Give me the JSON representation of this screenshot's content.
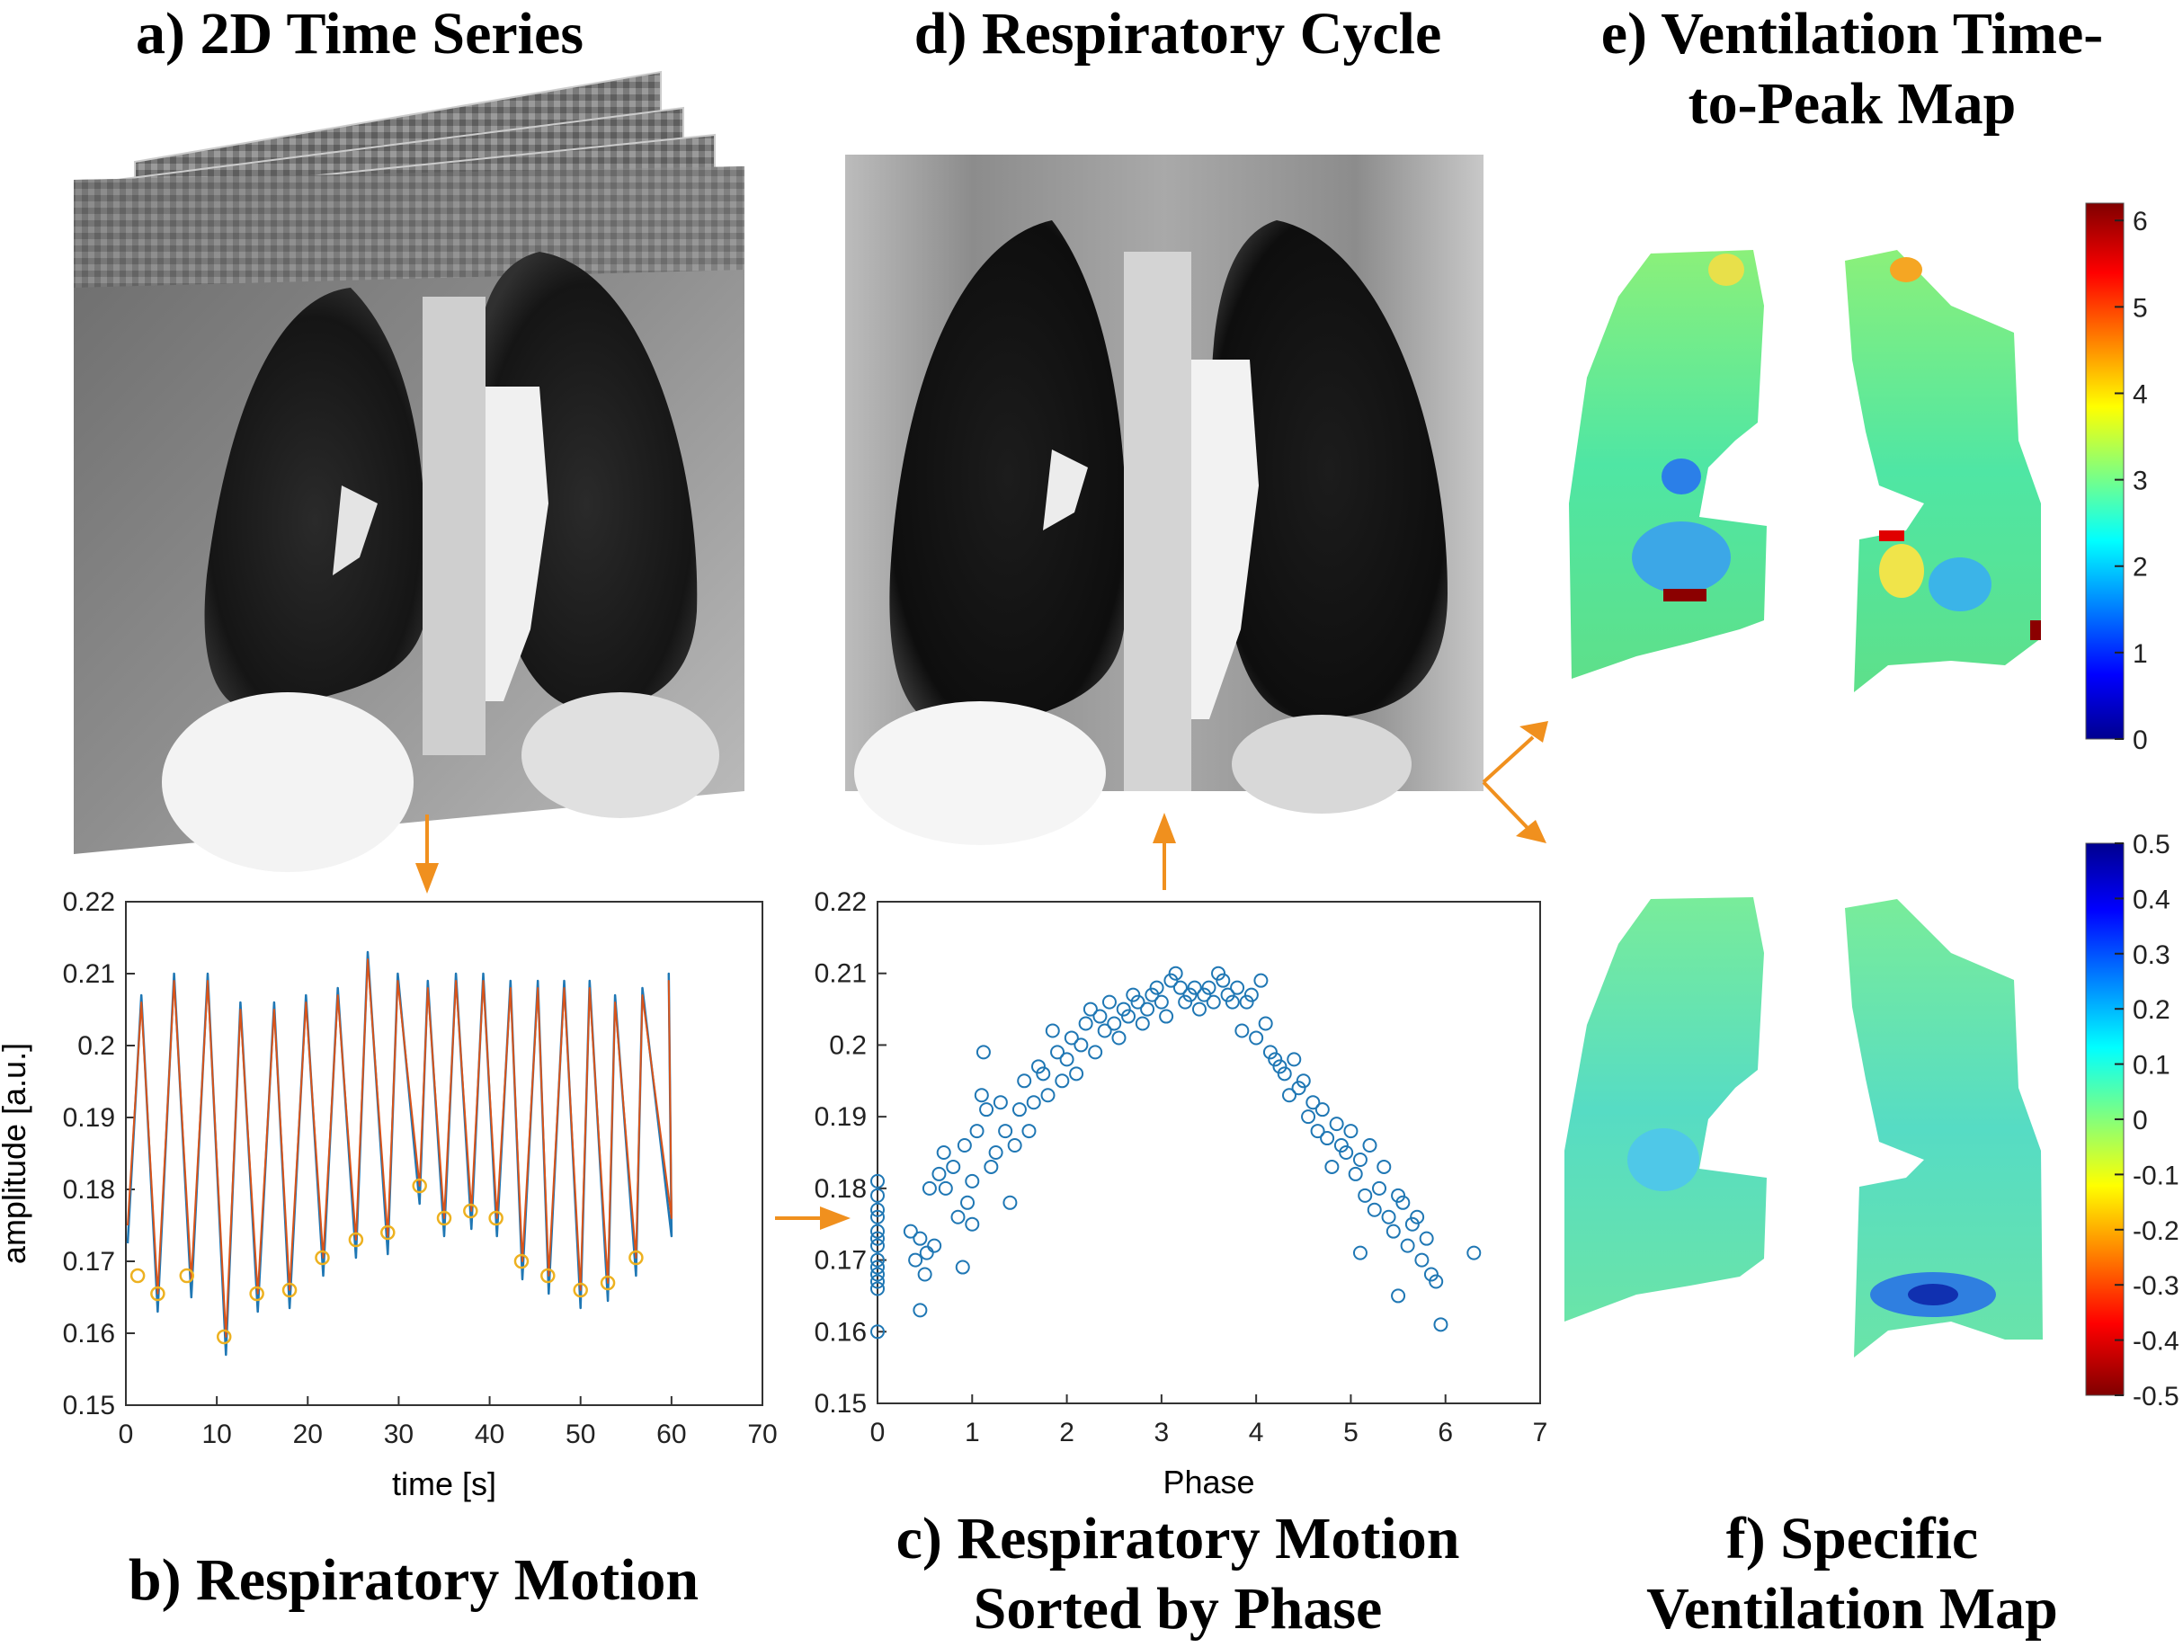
{
  "panels": {
    "a": {
      "title": "a) 2D Time Series"
    },
    "b": {
      "title": "b) Respiratory Motion"
    },
    "c": {
      "title_line1": "c) Respiratory Motion",
      "title_line2": "Sorted by Phase"
    },
    "d": {
      "title": "d) Respiratory Cycle"
    },
    "e": {
      "title_line1": "e) Ventilation Time-",
      "title_line2": "to-Peak Map"
    },
    "f": {
      "title_line1": "f) Specific",
      "title_line2": "Ventilation Map"
    }
  },
  "colors": {
    "arrow": "#f0901e",
    "series_blue": "#1f77b4",
    "series_orange": "#d95319",
    "marker_yellow": "#edb120"
  },
  "colorbars": {
    "time_to_peak": {
      "ticks": [
        "6",
        "5",
        "4",
        "3",
        "2",
        "1",
        "0"
      ],
      "colormap": "jet",
      "range": [
        0,
        6.2
      ]
    },
    "specific_ventilation": {
      "ticks": [
        "0.5",
        "0.4",
        "0.3",
        "0.2",
        "0.1",
        "0",
        "-0.1",
        "-0.2",
        "-0.3",
        "-0.4",
        "-0.5"
      ],
      "colormap": "jet-reversed",
      "range": [
        -0.5,
        0.5
      ]
    }
  },
  "chart_data": [
    {
      "type": "line",
      "xlabel": "time [s]",
      "ylabel": "amplitude [a.u.]",
      "xlim": [
        0,
        70
      ],
      "ylim": [
        0.15,
        0.22
      ],
      "xticks": [
        "0",
        "10",
        "20",
        "30",
        "40",
        "50",
        "60",
        "70"
      ],
      "yticks": [
        "0.15",
        "0.16",
        "0.17",
        "0.18",
        "0.19",
        "0.2",
        "0.21",
        "0.22"
      ],
      "peaks": [
        [
          1.7,
          0.206
        ],
        [
          5.3,
          0.209
        ],
        [
          9.0,
          0.209
        ],
        [
          12.6,
          0.205
        ],
        [
          16.3,
          0.205
        ],
        [
          19.8,
          0.206
        ],
        [
          23.3,
          0.207
        ],
        [
          26.6,
          0.212
        ],
        [
          29.9,
          0.209
        ],
        [
          33.2,
          0.208
        ],
        [
          36.3,
          0.209
        ],
        [
          39.3,
          0.209
        ],
        [
          42.3,
          0.208
        ],
        [
          45.3,
          0.208
        ],
        [
          48.2,
          0.208
        ],
        [
          51.0,
          0.208
        ],
        [
          53.8,
          0.206
        ],
        [
          56.8,
          0.207
        ],
        [
          59.7,
          0.209
        ]
      ],
      "minima": [
        [
          0.2,
          0.175
        ],
        [
          3.5,
          0.1655
        ],
        [
          7.2,
          0.1675
        ],
        [
          11.0,
          0.1595
        ],
        [
          14.5,
          0.1655
        ],
        [
          18.0,
          0.166
        ],
        [
          21.7,
          0.1705
        ],
        [
          25.3,
          0.173
        ],
        [
          28.8,
          0.1735
        ],
        [
          32.3,
          0.1805
        ],
        [
          35.0,
          0.176
        ],
        [
          38.0,
          0.177
        ],
        [
          40.8,
          0.176
        ],
        [
          43.6,
          0.17
        ],
        [
          46.5,
          0.168
        ],
        [
          50.0,
          0.166
        ],
        [
          53.0,
          0.167
        ],
        [
          56.1,
          0.1705
        ],
        [
          60.0,
          0.176
        ]
      ],
      "series": [
        {
          "name": "",
          "color": "#1f77b4"
        },
        {
          "name": "",
          "color": "#d95319"
        }
      ],
      "circled_points": [
        [
          1.3,
          0.168
        ],
        [
          3.5,
          0.1655
        ],
        [
          6.7,
          0.168
        ],
        [
          10.8,
          0.1595
        ],
        [
          14.4,
          0.1655
        ],
        [
          18.0,
          0.166
        ],
        [
          21.6,
          0.1705
        ],
        [
          25.3,
          0.173
        ],
        [
          28.8,
          0.174
        ],
        [
          32.3,
          0.1805
        ],
        [
          35.0,
          0.176
        ],
        [
          37.9,
          0.177
        ],
        [
          40.7,
          0.176
        ],
        [
          43.5,
          0.17
        ],
        [
          46.4,
          0.168
        ],
        [
          50.0,
          0.166
        ],
        [
          53.0,
          0.167
        ],
        [
          56.1,
          0.1705
        ]
      ],
      "grid": false
    },
    {
      "type": "scatter",
      "xlabel": "Phase",
      "ylabel": "",
      "xlim": [
        0,
        7
      ],
      "ylim": [
        0.15,
        0.22
      ],
      "xticks": [
        "0",
        "1",
        "2",
        "3",
        "4",
        "5",
        "6",
        "7"
      ],
      "yticks": [
        "0.15",
        "0.16",
        "0.17",
        "0.18",
        "0.19",
        "0.2",
        "0.21",
        "0.22"
      ],
      "marker_color": "#1f77b4",
      "points": [
        [
          0,
          0.16
        ],
        [
          0,
          0.166
        ],
        [
          0,
          0.167
        ],
        [
          0,
          0.169
        ],
        [
          0,
          0.17
        ],
        [
          0,
          0.172
        ],
        [
          0,
          0.174
        ],
        [
          0,
          0.176
        ],
        [
          0,
          0.177
        ],
        [
          0,
          0.179
        ],
        [
          0,
          0.181
        ],
        [
          0,
          0.168
        ],
        [
          0,
          0.173
        ],
        [
          0.35,
          0.174
        ],
        [
          0.4,
          0.17
        ],
        [
          0.45,
          0.163
        ],
        [
          0.45,
          0.173
        ],
        [
          0.5,
          0.168
        ],
        [
          0.52,
          0.171
        ],
        [
          0.55,
          0.18
        ],
        [
          0.6,
          0.172
        ],
        [
          0.65,
          0.182
        ],
        [
          0.7,
          0.185
        ],
        [
          0.72,
          0.18
        ],
        [
          0.8,
          0.183
        ],
        [
          0.85,
          0.176
        ],
        [
          0.9,
          0.169
        ],
        [
          0.92,
          0.186
        ],
        [
          0.95,
          0.178
        ],
        [
          1.0,
          0.181
        ],
        [
          1.0,
          0.175
        ],
        [
          1.05,
          0.188
        ],
        [
          1.1,
          0.193
        ],
        [
          1.12,
          0.199
        ],
        [
          1.15,
          0.191
        ],
        [
          1.2,
          0.183
        ],
        [
          1.25,
          0.185
        ],
        [
          1.3,
          0.192
        ],
        [
          1.35,
          0.188
        ],
        [
          1.4,
          0.178
        ],
        [
          1.45,
          0.186
        ],
        [
          1.5,
          0.191
        ],
        [
          1.55,
          0.195
        ],
        [
          1.6,
          0.188
        ],
        [
          1.65,
          0.192
        ],
        [
          1.7,
          0.197
        ],
        [
          1.75,
          0.196
        ],
        [
          1.8,
          0.193
        ],
        [
          1.85,
          0.202
        ],
        [
          1.9,
          0.199
        ],
        [
          1.95,
          0.195
        ],
        [
          2.0,
          0.198
        ],
        [
          2.05,
          0.201
        ],
        [
          2.1,
          0.196
        ],
        [
          2.15,
          0.2
        ],
        [
          2.2,
          0.203
        ],
        [
          2.25,
          0.205
        ],
        [
          2.3,
          0.199
        ],
        [
          2.35,
          0.204
        ],
        [
          2.4,
          0.202
        ],
        [
          2.45,
          0.206
        ],
        [
          2.5,
          0.203
        ],
        [
          2.55,
          0.201
        ],
        [
          2.6,
          0.205
        ],
        [
          2.65,
          0.204
        ],
        [
          2.7,
          0.207
        ],
        [
          2.75,
          0.206
        ],
        [
          2.8,
          0.203
        ],
        [
          2.85,
          0.205
        ],
        [
          2.9,
          0.207
        ],
        [
          2.95,
          0.208
        ],
        [
          3.0,
          0.206
        ],
        [
          3.05,
          0.204
        ],
        [
          3.1,
          0.209
        ],
        [
          3.15,
          0.21
        ],
        [
          3.2,
          0.208
        ],
        [
          3.25,
          0.206
        ],
        [
          3.3,
          0.207
        ],
        [
          3.35,
          0.208
        ],
        [
          3.4,
          0.205
        ],
        [
          3.45,
          0.207
        ],
        [
          3.5,
          0.208
        ],
        [
          3.55,
          0.206
        ],
        [
          3.6,
          0.21
        ],
        [
          3.65,
          0.209
        ],
        [
          3.7,
          0.207
        ],
        [
          3.75,
          0.206
        ],
        [
          3.8,
          0.208
        ],
        [
          3.85,
          0.202
        ],
        [
          3.9,
          0.206
        ],
        [
          3.95,
          0.207
        ],
        [
          4.0,
          0.201
        ],
        [
          4.05,
          0.209
        ],
        [
          4.1,
          0.203
        ],
        [
          4.15,
          0.199
        ],
        [
          4.2,
          0.198
        ],
        [
          4.25,
          0.197
        ],
        [
          4.3,
          0.196
        ],
        [
          4.35,
          0.193
        ],
        [
          4.4,
          0.198
        ],
        [
          4.45,
          0.194
        ],
        [
          4.5,
          0.195
        ],
        [
          4.55,
          0.19
        ],
        [
          4.6,
          0.192
        ],
        [
          4.65,
          0.188
        ],
        [
          4.7,
          0.191
        ],
        [
          4.75,
          0.187
        ],
        [
          4.8,
          0.183
        ],
        [
          4.85,
          0.189
        ],
        [
          4.9,
          0.186
        ],
        [
          4.95,
          0.185
        ],
        [
          5.0,
          0.188
        ],
        [
          5.05,
          0.182
        ],
        [
          5.1,
          0.184
        ],
        [
          5.15,
          0.179
        ],
        [
          5.2,
          0.186
        ],
        [
          5.25,
          0.177
        ],
        [
          5.3,
          0.18
        ],
        [
          5.35,
          0.183
        ],
        [
          5.4,
          0.176
        ],
        [
          5.45,
          0.174
        ],
        [
          5.5,
          0.179
        ],
        [
          5.55,
          0.178
        ],
        [
          5.6,
          0.172
        ],
        [
          5.65,
          0.175
        ],
        [
          5.7,
          0.176
        ],
        [
          5.75,
          0.17
        ],
        [
          5.8,
          0.173
        ],
        [
          5.85,
          0.168
        ],
        [
          5.9,
          0.167
        ],
        [
          5.95,
          0.161
        ],
        [
          6.3,
          0.171
        ],
        [
          5.5,
          0.165
        ],
        [
          5.1,
          0.171
        ]
      ],
      "grid": false
    }
  ]
}
